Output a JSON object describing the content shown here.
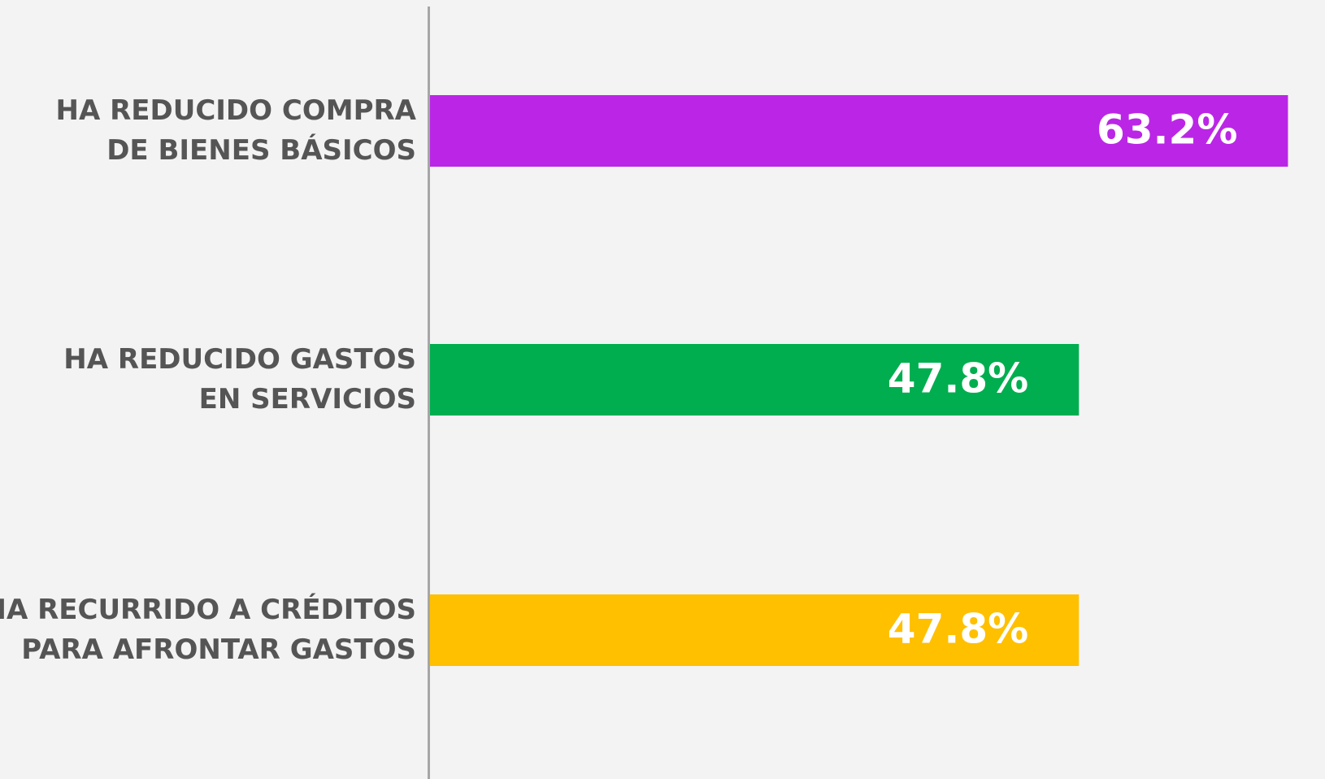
{
  "chart_data": {
    "type": "barh",
    "categories": [
      [
        "HA REDUCIDO COMPRA",
        "DE BIENES BÁSICOS"
      ],
      [
        "HA REDUCIDO GASTOS",
        "EN SERVICIOS"
      ],
      [
        "HA RECURRIDO A CRÉDITOS",
        "PARA AFRONTAR GASTOS"
      ]
    ],
    "values": [
      63.2,
      47.8,
      47.8
    ],
    "value_labels": [
      "63.2%",
      "47.8%",
      "47.8%"
    ],
    "colors": [
      "#bb26e6",
      "#00ae4f",
      "#ffc000"
    ]
  }
}
